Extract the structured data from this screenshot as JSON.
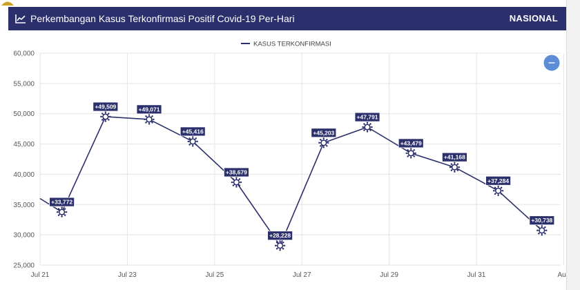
{
  "header": {
    "title": "Perkembangan Kasus Terkonfirmasi Positif Covid-19 Per-Hari",
    "scope": "NASIONAL",
    "icon": "line-chart-icon"
  },
  "zoom_button": {
    "icon": "minus-icon",
    "color": "#5b8ed6"
  },
  "colors": {
    "header_bg": "#2b2f6b",
    "series": "#2b2f6b",
    "grid": "#e3e3e3"
  },
  "chart_data": {
    "type": "line",
    "title": "Perkembangan Kasus Terkonfirmasi Positif Covid-19 Per-Hari",
    "xlabel": "",
    "ylabel": "",
    "ylim": [
      25000,
      60000
    ],
    "yticks": [
      "60,000",
      "55,000",
      "50,000",
      "45,000",
      "40,000",
      "35,000",
      "30,000",
      "25,000"
    ],
    "ytick_values": [
      60000,
      55000,
      50000,
      45000,
      40000,
      35000,
      30000,
      25000
    ],
    "xticks": [
      "Jul 21",
      "Jul 23",
      "Jul 25",
      "Jul 27",
      "Jul 29",
      "Jul 31",
      "Aug"
    ],
    "grid": true,
    "legend_position": "top-center",
    "series": [
      {
        "name": "KASUS TERKONFIRMASI",
        "points": [
          {
            "date": "2021-07-21",
            "value": 36000,
            "label": ""
          },
          {
            "date": "2021-07-21",
            "value": 33772,
            "label": "+33,772"
          },
          {
            "date": "2021-07-22",
            "value": 49509,
            "label": "+49,509"
          },
          {
            "date": "2021-07-23",
            "value": 49071,
            "label": "+49,071"
          },
          {
            "date": "2021-07-24",
            "value": 45416,
            "label": "+45,416"
          },
          {
            "date": "2021-07-25",
            "value": 38679,
            "label": "+38,679"
          },
          {
            "date": "2021-07-26",
            "value": 28228,
            "label": "+28,228"
          },
          {
            "date": "2021-07-27",
            "value": 45203,
            "label": "+45,203"
          },
          {
            "date": "2021-07-28",
            "value": 47791,
            "label": "+47,791"
          },
          {
            "date": "2021-07-29",
            "value": 43479,
            "label": "+43,479"
          },
          {
            "date": "2021-07-30",
            "value": 41168,
            "label": "+41,168"
          },
          {
            "date": "2021-07-31",
            "value": 37284,
            "label": "+37,284"
          },
          {
            "date": "2021-08-01",
            "value": 30738,
            "label": "+30,738"
          }
        ]
      }
    ]
  }
}
